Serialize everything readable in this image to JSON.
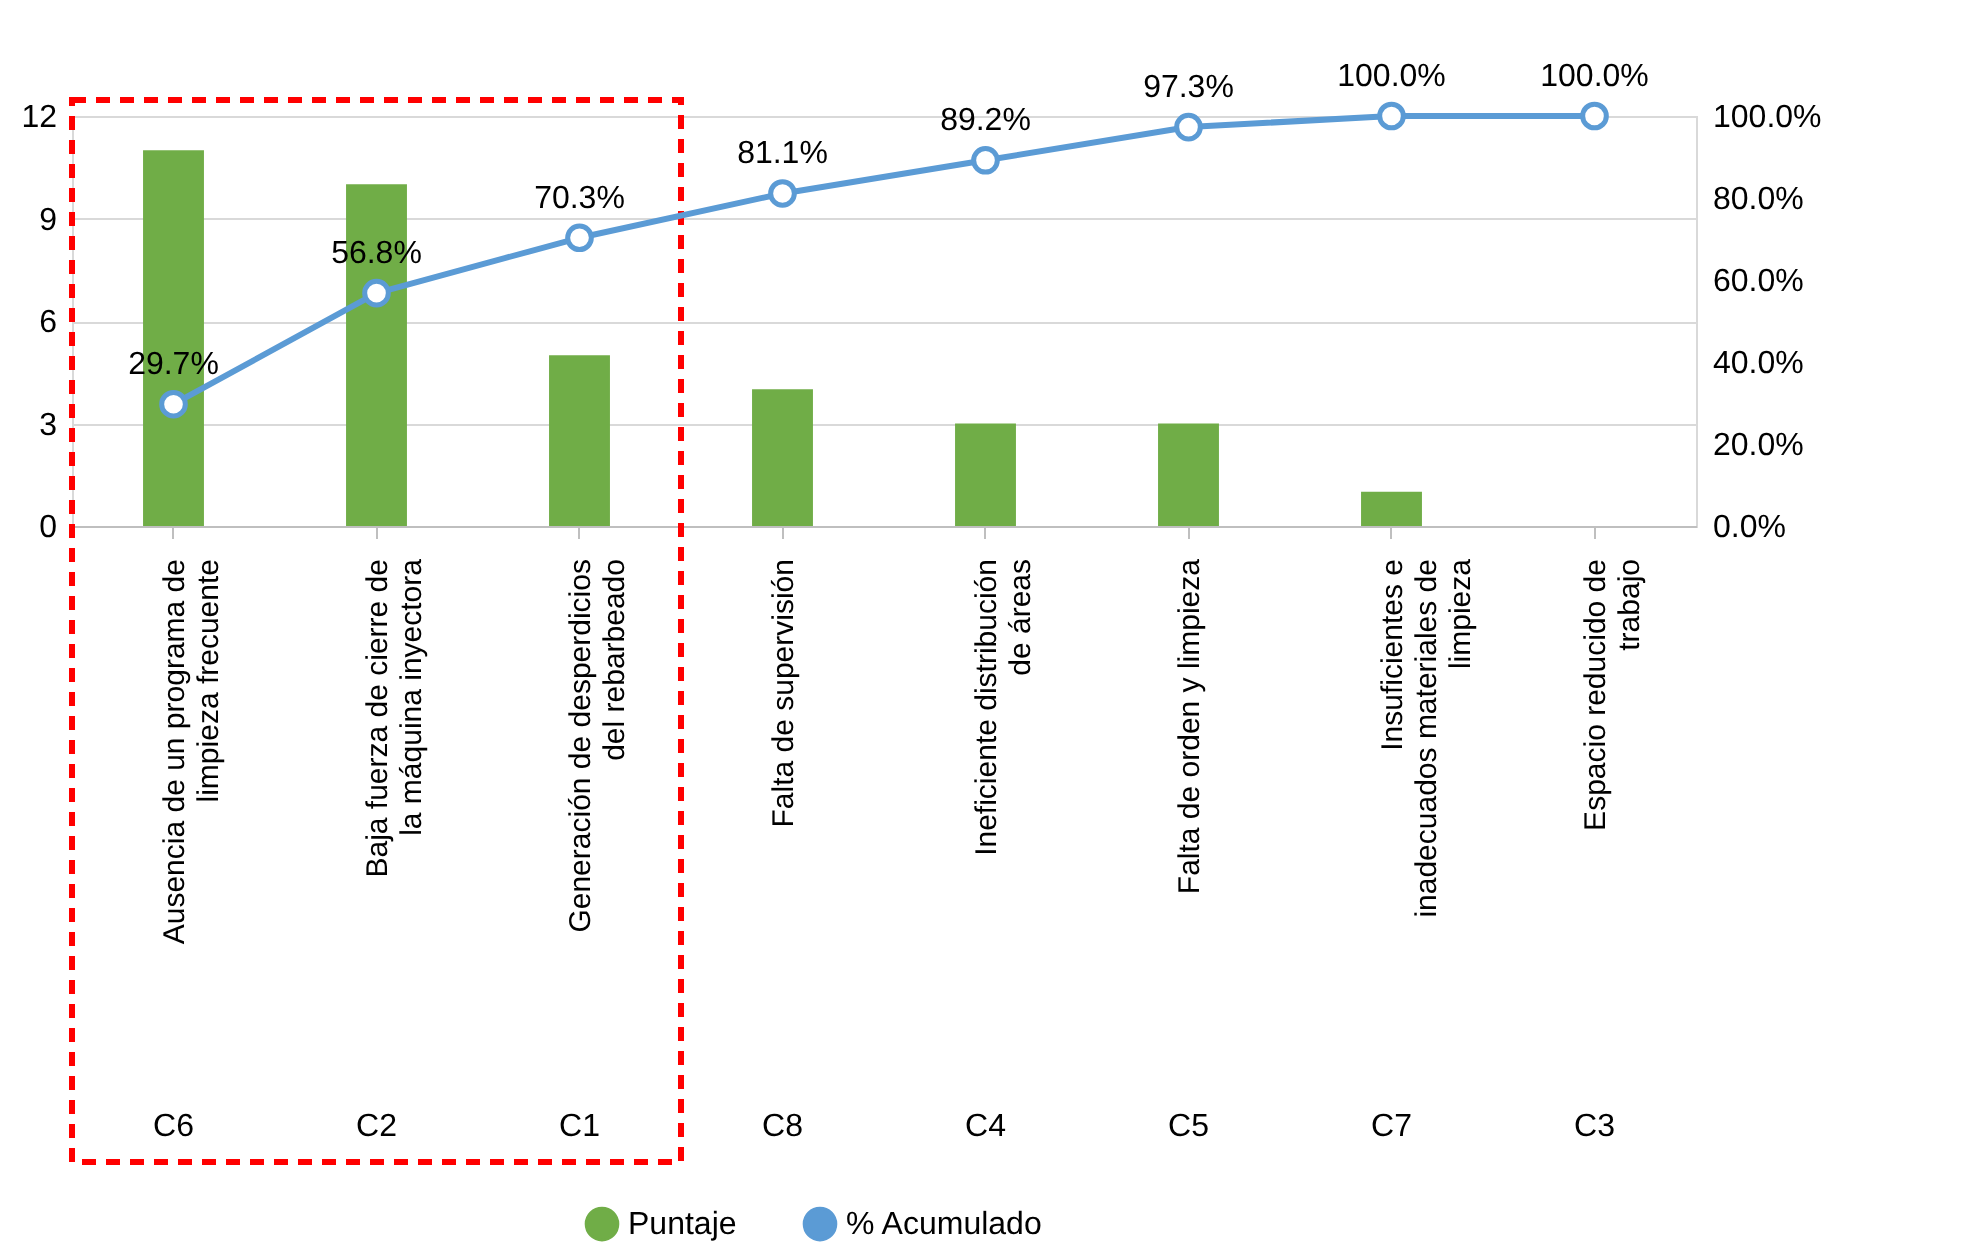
{
  "chart_data": {
    "type": "bar",
    "categories": [
      "Ausencia de un programa de limpieza frecuente",
      "Baja fuerza de cierre de la máquina inyectora",
      "Generación de desperdicios del rebarbeado",
      "Falta de supervisión",
      "Ineficiente distribución de áreas",
      "Falta de orden y limpieza",
      "Insuficientes e inadecuados materiales de limpieza",
      "Espacio reducido de trabajo"
    ],
    "series": [
      {
        "name": "Puntaje",
        "color": "#70ad47",
        "values": [
          11,
          10,
          5,
          4,
          3,
          3,
          1,
          0
        ]
      },
      {
        "name": "% Acumulado",
        "type": "line",
        "axis": "y2",
        "color": "#5b9bd5",
        "marker": "circle",
        "values": [
          29.7,
          56.8,
          70.3,
          81.1,
          89.2,
          97.3,
          100.0,
          100.0
        ],
        "value_labels": [
          "29.7%",
          "56.8%",
          "70.3%",
          "81.1%",
          "89.2%",
          "97.3%",
          "100.0%",
          "100.0%"
        ]
      }
    ],
    "ylim": [
      0,
      12
    ],
    "yticks": [
      0,
      3,
      6,
      9,
      12
    ],
    "y2lim": [
      0,
      100
    ],
    "y2ticks": [
      {
        "value": 0,
        "label": "0.0%"
      },
      {
        "value": 20,
        "label": "20.0%"
      },
      {
        "value": 40,
        "label": "40.0%"
      },
      {
        "value": 60,
        "label": "60.0%"
      },
      {
        "value": 80,
        "label": "80.0%"
      },
      {
        "value": 100,
        "label": "100.0%"
      }
    ],
    "annotations": [
      "C6",
      "C2",
      "C1",
      "C8",
      "C4",
      "C5",
      "C7",
      "C3"
    ],
    "grid": "y",
    "legend": "bottom"
  }
}
